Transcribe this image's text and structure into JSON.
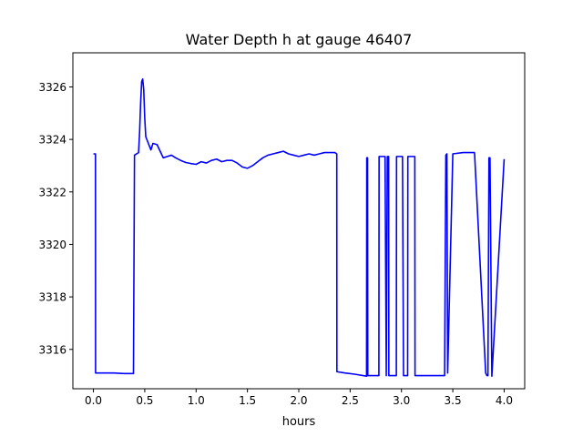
{
  "chart_data": {
    "type": "line",
    "title": "Water Depth h at gauge 46407",
    "xlabel": "hours",
    "ylabel": "",
    "xlim": [
      -0.2,
      4.2
    ],
    "ylim": [
      3314.5,
      3327.3
    ],
    "xticks": [
      0.0,
      0.5,
      1.0,
      1.5,
      2.0,
      2.5,
      3.0,
      3.5,
      4.0
    ],
    "xtick_labels": [
      "0.0",
      "0.5",
      "1.0",
      "1.5",
      "2.0",
      "2.5",
      "3.0",
      "3.5",
      "4.0"
    ],
    "yticks": [
      3316,
      3318,
      3320,
      3322,
      3324,
      3326
    ],
    "ytick_labels": [
      "3316",
      "3318",
      "3320",
      "3322",
      "3324",
      "3326"
    ],
    "grid": false,
    "series": [
      {
        "color": "#0000ff",
        "x": [
          0.0,
          0.02,
          0.021,
          0.1,
          0.2,
          0.3,
          0.39,
          0.4,
          0.44,
          0.45,
          0.46,
          0.47,
          0.48,
          0.49,
          0.5,
          0.51,
          0.53,
          0.56,
          0.58,
          0.62,
          0.65,
          0.68,
          0.72,
          0.76,
          0.8,
          0.85,
          0.9,
          0.95,
          1.0,
          1.05,
          1.1,
          1.15,
          1.2,
          1.25,
          1.3,
          1.35,
          1.4,
          1.45,
          1.5,
          1.55,
          1.6,
          1.65,
          1.7,
          1.75,
          1.8,
          1.85,
          1.9,
          1.95,
          2.0,
          2.05,
          2.1,
          2.15,
          2.2,
          2.25,
          2.3,
          2.35,
          2.37,
          2.371,
          2.45,
          2.55,
          2.66,
          2.662,
          2.67,
          2.672,
          2.68,
          2.7,
          2.78,
          2.782,
          2.84,
          2.852,
          2.862,
          2.875,
          2.877,
          2.95,
          2.952,
          3.01,
          3.02,
          3.04,
          3.06,
          3.062,
          3.13,
          3.132,
          3.2,
          3.3,
          3.42,
          3.432,
          3.442,
          3.45,
          3.5,
          3.6,
          3.71,
          3.712,
          3.82,
          3.832,
          3.842,
          3.852,
          3.862,
          3.88,
          4.0
        ],
        "y": [
          3323.45,
          3323.45,
          3315.1,
          3315.1,
          3315.1,
          3315.08,
          3315.08,
          3323.4,
          3323.5,
          3324.3,
          3325.4,
          3326.2,
          3326.3,
          3325.9,
          3324.8,
          3324.1,
          3323.9,
          3323.6,
          3323.85,
          3323.8,
          3323.55,
          3323.3,
          3323.35,
          3323.4,
          3323.3,
          3323.2,
          3323.12,
          3323.08,
          3323.05,
          3323.15,
          3323.1,
          3323.2,
          3323.25,
          3323.15,
          3323.2,
          3323.2,
          3323.1,
          3322.95,
          3322.9,
          3323.0,
          3323.15,
          3323.3,
          3323.4,
          3323.45,
          3323.5,
          3323.55,
          3323.45,
          3323.4,
          3323.35,
          3323.4,
          3323.45,
          3323.4,
          3323.45,
          3323.5,
          3323.5,
          3323.5,
          3323.45,
          3315.15,
          3315.1,
          3315.05,
          3314.98,
          3323.3,
          3323.3,
          3315.0,
          3315.0,
          3315.0,
          3315.0,
          3323.35,
          3323.35,
          3315.0,
          3323.35,
          3323.35,
          3315.0,
          3315.0,
          3323.35,
          3323.35,
          3315.0,
          3315.0,
          3315.0,
          3323.35,
          3323.35,
          3315.0,
          3315.0,
          3315.0,
          3315.0,
          3323.4,
          3323.45,
          3315.1,
          3323.45,
          3323.5,
          3323.5,
          3323.45,
          3315.1,
          3315.0,
          3315.0,
          3323.3,
          3323.3,
          3314.98,
          3323.25
        ]
      }
    ]
  }
}
